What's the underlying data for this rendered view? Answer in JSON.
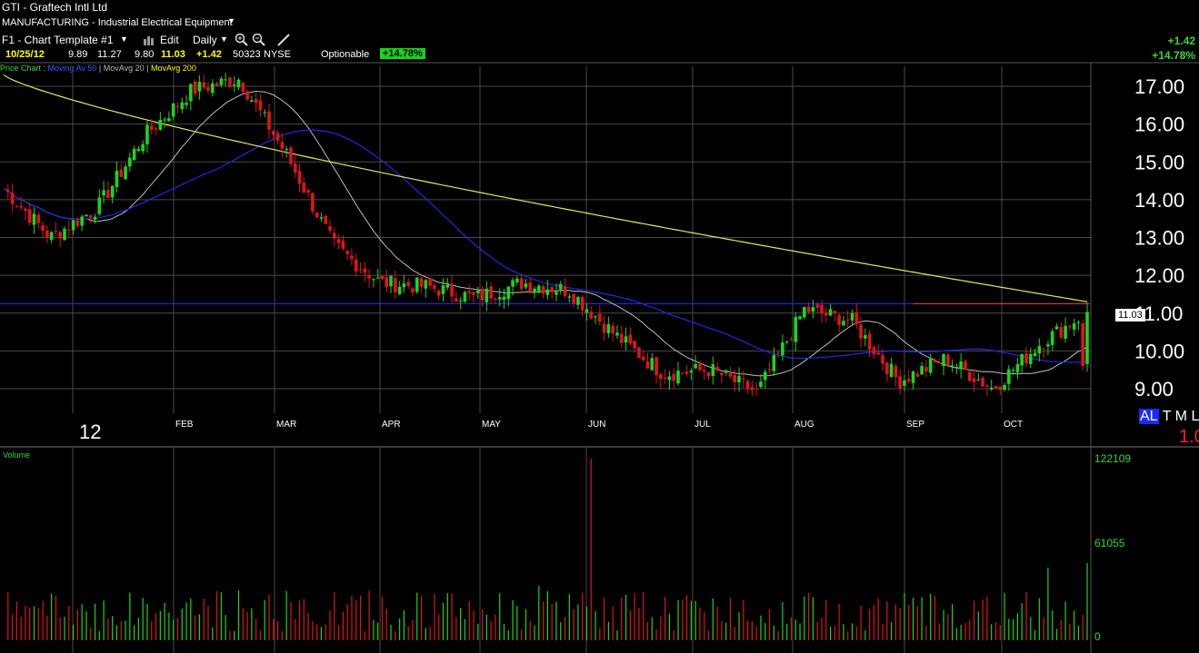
{
  "header": {
    "title": "GTI - Graftech Intl Ltd",
    "sector": "MANUFACTURING - Industrial Electrical Equipment",
    "template": "F1 - Chart Template #1",
    "edit_label": "Edit",
    "period": "Daily",
    "date": "10/25/12",
    "open": "9.89",
    "high": "11.27",
    "low": "9.80",
    "close": "11.03",
    "change": "+1.42",
    "volume": "50323",
    "exchange": "NYSE",
    "optionable": "Optionable",
    "change_pct": "+14.78%",
    "right_change": "+1.42",
    "right_change_pct": "+14.78%"
  },
  "legend": {
    "price": "Price Chart",
    "ma50": "Moving Av 50",
    "ma20": "MovAvg 20",
    "ma200": "MovAvg 200"
  },
  "price_axis": {
    "labels": [
      "17.00",
      "16.00",
      "15.00",
      "14.00",
      "13.00",
      "12.00",
      "11.00",
      "10.00",
      "9.00"
    ],
    "current": "11.03"
  },
  "time_axis": {
    "year": "12",
    "months": [
      "FEB",
      "MAR",
      "APR",
      "MAY",
      "JUN",
      "JUL",
      "AUG",
      "SEP",
      "OCT"
    ]
  },
  "range_buttons": [
    "AL",
    "T",
    "M",
    "L"
  ],
  "misc_red": "1.0",
  "volume_panel": {
    "title": "Volume",
    "labels": [
      "122109",
      "61055",
      "0"
    ]
  },
  "colors": {
    "up": "#1ed41e",
    "down": "#e0141c",
    "ma20": "#bdbdbd",
    "ma50": "#1f2be0",
    "ma200": "#e6e65a",
    "grid": "#4a4a4a"
  },
  "chart_data": {
    "type": "candlestick",
    "ylim": [
      8.5,
      17.5
    ],
    "key_levels": {
      "reference_line": 11.25,
      "last_close": 11.03
    },
    "close_path": [
      {
        "month": "JAN",
        "close": 14.3
      },
      {
        "month": "JAN",
        "close": 13.0
      },
      {
        "month": "JAN",
        "close": 13.8
      },
      {
        "month": "FEB",
        "close": 15.7
      },
      {
        "month": "FEB",
        "close": 16.9
      },
      {
        "month": "FEB",
        "close": 17.2
      },
      {
        "month": "FEB",
        "close": 15.2
      },
      {
        "month": "MAR",
        "close": 12.8
      },
      {
        "month": "MAR",
        "close": 11.8
      },
      {
        "month": "APR",
        "close": 11.7
      },
      {
        "month": "APR",
        "close": 11.4
      },
      {
        "month": "MAY",
        "close": 11.8
      },
      {
        "month": "MAY",
        "close": 11.6
      },
      {
        "month": "JUN",
        "close": 10.4
      },
      {
        "month": "JUN",
        "close": 9.4
      },
      {
        "month": "JUL",
        "close": 9.5
      },
      {
        "month": "JUL",
        "close": 8.9
      },
      {
        "month": "AUG",
        "close": 11.1
      },
      {
        "month": "AUG",
        "close": 10.8
      },
      {
        "month": "SEP",
        "close": 9.2
      },
      {
        "month": "SEP",
        "close": 9.8
      },
      {
        "month": "OCT",
        "close": 9.0
      },
      {
        "month": "OCT",
        "close": 10.2
      },
      {
        "month": "OCT",
        "close": 11.03
      }
    ]
  }
}
